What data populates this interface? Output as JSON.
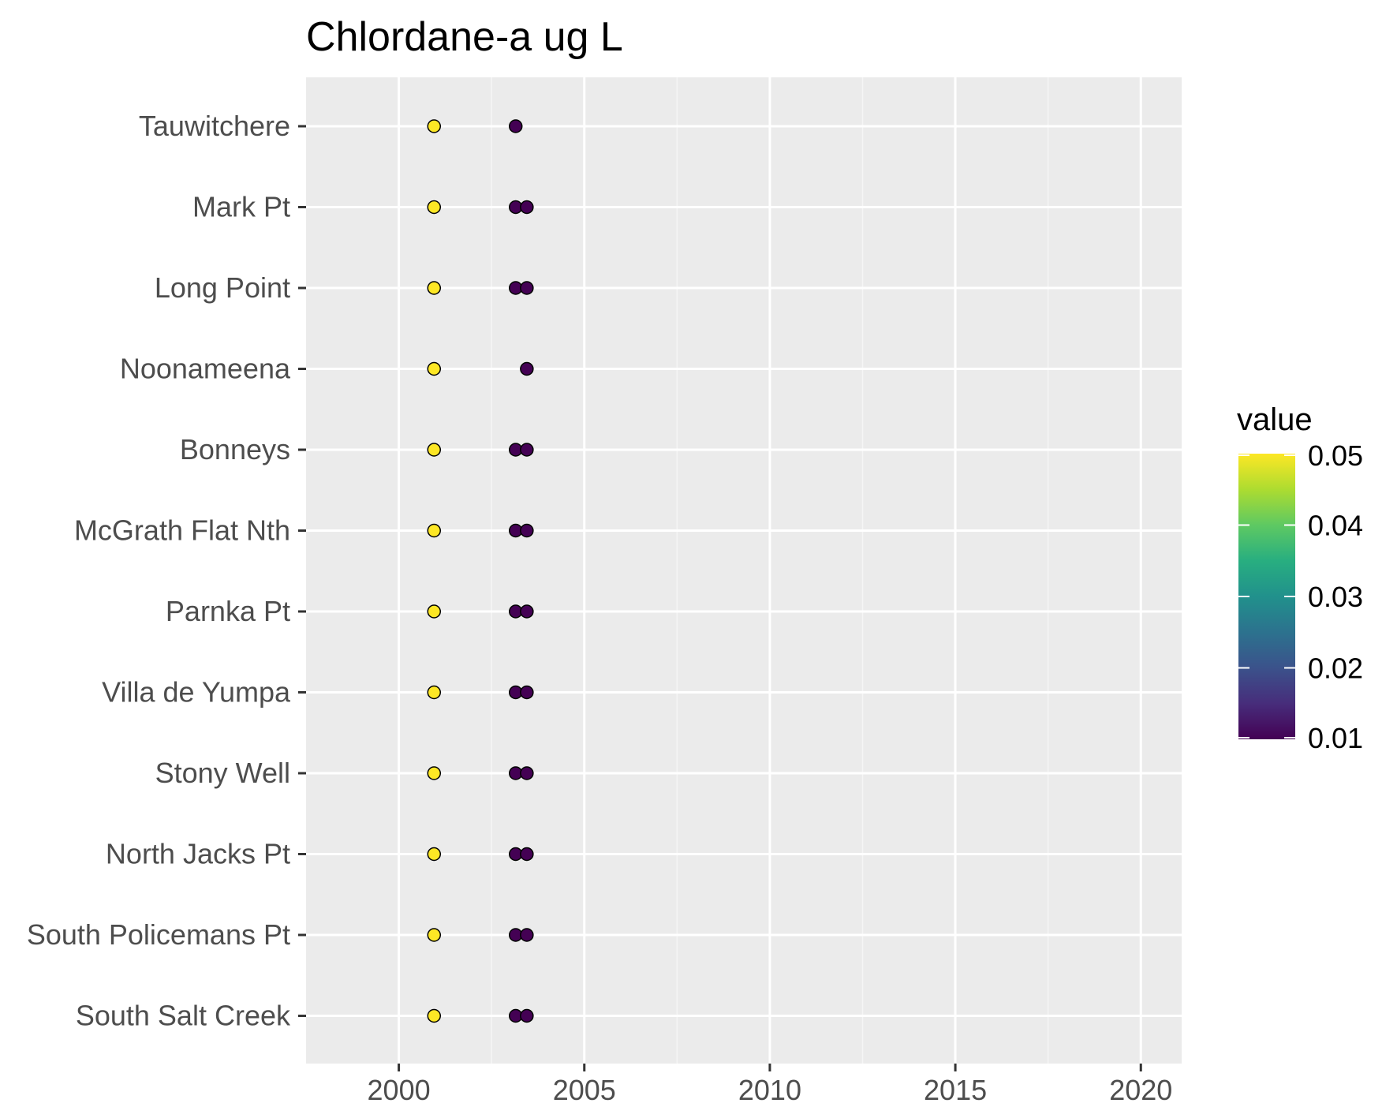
{
  "chart_data": {
    "type": "scatter",
    "title": "Chlordane-a ug L",
    "xlabel": "",
    "ylabel": "",
    "xlim": [
      1997.5,
      2021.1
    ],
    "x_ticks": [
      2000,
      2005,
      2010,
      2015,
      2020
    ],
    "x_tick_labels": [
      "2000",
      "2005",
      "2010",
      "2015",
      "2020"
    ],
    "categories": [
      "Tauwitchere",
      "Mark Pt",
      "Long Point",
      "Noonameena",
      "Bonneys",
      "McGrath Flat Nth",
      "Parnka Pt",
      "Villa de Yumpa",
      "Stony Well",
      "North Jacks Pt",
      "South Policemans Pt",
      "South Salt Creek"
    ],
    "grid": true,
    "colorbar": {
      "title": "value",
      "min": 0.01,
      "max": 0.05,
      "ticks": [
        0.05,
        0.04,
        0.03,
        0.02,
        0.01
      ],
      "tick_labels": [
        "0.05",
        "0.04",
        "0.03",
        "0.02",
        "0.01"
      ],
      "palette": "viridis",
      "placement": "right"
    },
    "points": [
      {
        "site": "Tauwitchere",
        "x": 2000.95,
        "value": 0.05
      },
      {
        "site": "Tauwitchere",
        "x": 2003.15,
        "value": 0.01
      },
      {
        "site": "Mark Pt",
        "x": 2000.95,
        "value": 0.05
      },
      {
        "site": "Mark Pt",
        "x": 2003.15,
        "value": 0.01
      },
      {
        "site": "Mark Pt",
        "x": 2003.45,
        "value": 0.01
      },
      {
        "site": "Long Point",
        "x": 2000.95,
        "value": 0.05
      },
      {
        "site": "Long Point",
        "x": 2003.15,
        "value": 0.01
      },
      {
        "site": "Long Point",
        "x": 2003.45,
        "value": 0.01
      },
      {
        "site": "Noonameena",
        "x": 2000.95,
        "value": 0.05
      },
      {
        "site": "Noonameena",
        "x": 2003.45,
        "value": 0.01
      },
      {
        "site": "Bonneys",
        "x": 2000.95,
        "value": 0.05
      },
      {
        "site": "Bonneys",
        "x": 2003.15,
        "value": 0.01
      },
      {
        "site": "Bonneys",
        "x": 2003.45,
        "value": 0.01
      },
      {
        "site": "McGrath Flat Nth",
        "x": 2000.95,
        "value": 0.05
      },
      {
        "site": "McGrath Flat Nth",
        "x": 2003.15,
        "value": 0.01
      },
      {
        "site": "McGrath Flat Nth",
        "x": 2003.45,
        "value": 0.01
      },
      {
        "site": "Parnka Pt",
        "x": 2000.95,
        "value": 0.05
      },
      {
        "site": "Parnka Pt",
        "x": 2003.15,
        "value": 0.01
      },
      {
        "site": "Parnka Pt",
        "x": 2003.45,
        "value": 0.01
      },
      {
        "site": "Villa de Yumpa",
        "x": 2000.95,
        "value": 0.05
      },
      {
        "site": "Villa de Yumpa",
        "x": 2003.15,
        "value": 0.01
      },
      {
        "site": "Villa de Yumpa",
        "x": 2003.45,
        "value": 0.01
      },
      {
        "site": "Stony Well",
        "x": 2000.95,
        "value": 0.05
      },
      {
        "site": "Stony Well",
        "x": 2003.15,
        "value": 0.01
      },
      {
        "site": "Stony Well",
        "x": 2003.45,
        "value": 0.01
      },
      {
        "site": "North Jacks Pt",
        "x": 2000.95,
        "value": 0.05
      },
      {
        "site": "North Jacks Pt",
        "x": 2003.15,
        "value": 0.01
      },
      {
        "site": "North Jacks Pt",
        "x": 2003.45,
        "value": 0.01
      },
      {
        "site": "South Policemans Pt",
        "x": 2000.95,
        "value": 0.05
      },
      {
        "site": "South Policemans Pt",
        "x": 2003.15,
        "value": 0.01
      },
      {
        "site": "South Policemans Pt",
        "x": 2003.45,
        "value": 0.01
      },
      {
        "site": "South Salt Creek",
        "x": 2000.95,
        "value": 0.05
      },
      {
        "site": "South Salt Creek",
        "x": 2003.15,
        "value": 0.01
      },
      {
        "site": "South Salt Creek",
        "x": 2003.45,
        "value": 0.01
      }
    ]
  },
  "colors": {
    "panel_background": "#ebebeb",
    "grid_major": "#ffffff",
    "grid_minor": "#f5f5f5",
    "tick_color": "#333333",
    "point_outline": "#000000",
    "viridis_low": "#440154",
    "viridis_high": "#fde725"
  }
}
